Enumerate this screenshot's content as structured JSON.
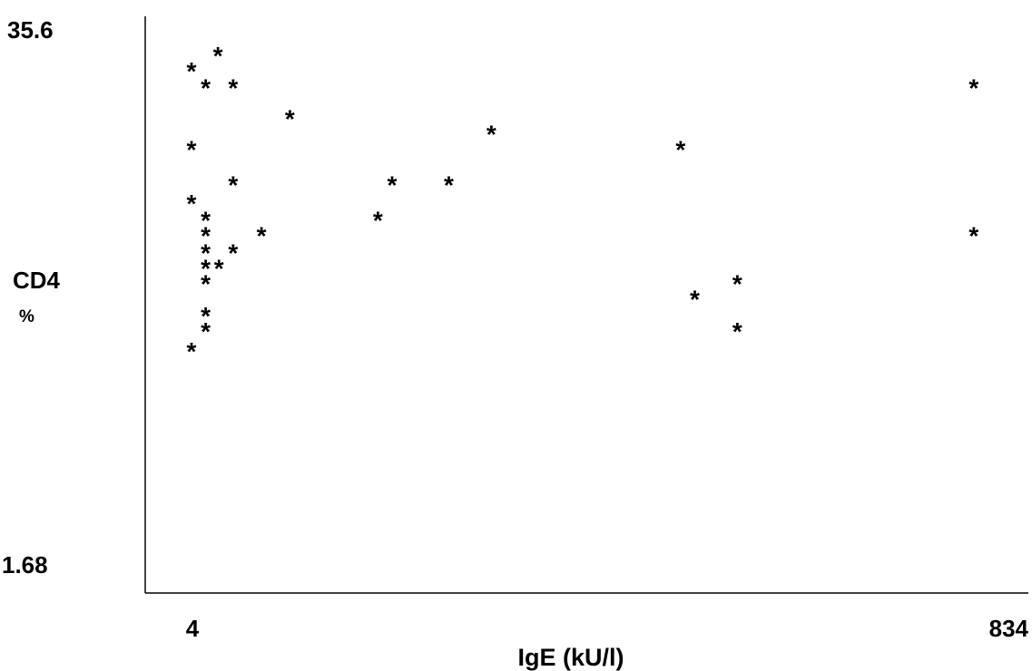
{
  "chart_data": {
    "type": "scatter",
    "marker": "*",
    "title": "",
    "xlabel": "IgE (kU/l)",
    "ylabel": "CD4",
    "ylabel_unit": "%",
    "x_ticks": [
      "4",
      "834"
    ],
    "y_ticks": [
      "35.6",
      "1.68"
    ],
    "xlim": [
      4,
      834
    ],
    "ylim": [
      1.68,
      35.6
    ],
    "grid": false,
    "points": [
      {
        "x": 31,
        "y": 34.6
      },
      {
        "x": 3,
        "y": 33.6
      },
      {
        "x": 18,
        "y": 32.5
      },
      {
        "x": 47,
        "y": 32.5
      },
      {
        "x": 830,
        "y": 32.5
      },
      {
        "x": 107,
        "y": 30.5
      },
      {
        "x": 320,
        "y": 29.5
      },
      {
        "x": 3,
        "y": 28.5
      },
      {
        "x": 520,
        "y": 28.5
      },
      {
        "x": 47,
        "y": 26.2
      },
      {
        "x": 215,
        "y": 26.2
      },
      {
        "x": 275,
        "y": 26.2
      },
      {
        "x": 3,
        "y": 25.0
      },
      {
        "x": 18,
        "y": 23.9
      },
      {
        "x": 200,
        "y": 23.9
      },
      {
        "x": 18,
        "y": 22.9
      },
      {
        "x": 77,
        "y": 22.9
      },
      {
        "x": 830,
        "y": 22.9
      },
      {
        "x": 18,
        "y": 21.8
      },
      {
        "x": 47,
        "y": 21.8
      },
      {
        "x": 18,
        "y": 20.8
      },
      {
        "x": 32,
        "y": 20.8
      },
      {
        "x": 18,
        "y": 19.8
      },
      {
        "x": 580,
        "y": 19.8
      },
      {
        "x": 535,
        "y": 18.8
      },
      {
        "x": 18,
        "y": 17.7
      },
      {
        "x": 18,
        "y": 16.7
      },
      {
        "x": 580,
        "y": 16.7
      },
      {
        "x": 3,
        "y": 15.4
      }
    ]
  }
}
